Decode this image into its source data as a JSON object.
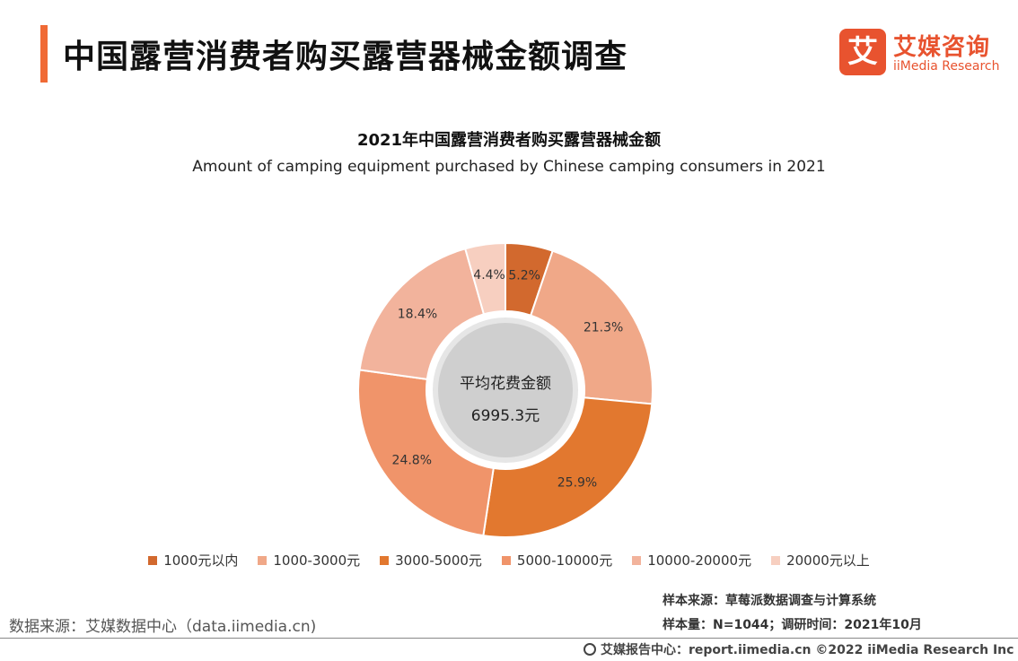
{
  "header": {
    "title": "中国露营消费者购买露营器械金额调查",
    "logo_badge": "艾",
    "logo_cn": "艾媒咨询",
    "logo_en": "iiMedia Research"
  },
  "colors": {
    "accent": "#f06a35",
    "brand": "#e8532f"
  },
  "chart_data": {
    "type": "pie",
    "donut": true,
    "title": "2021年中国露营消费者购买露营器械金额",
    "subtitle": "Amount of camping equipment purchased by Chinese camping consumers in 2021",
    "center_label": "平均花费金额",
    "center_value": "6995.3元",
    "categories": [
      "1000元以内",
      "1000-3000元",
      "3000-5000元",
      "5000-10000元",
      "10000-20000元",
      "20000元以上"
    ],
    "values": [
      5.2,
      21.3,
      25.9,
      24.8,
      18.4,
      4.4
    ],
    "value_labels": [
      "5.2%",
      "21.3%",
      "25.9%",
      "24.8%",
      "18.4%",
      "4.4%"
    ],
    "colors": [
      "#d2692e",
      "#f0a888",
      "#e2782f",
      "#f0946a",
      "#f2b39c",
      "#f7cfc0"
    ],
    "legend_position": "bottom"
  },
  "footer": {
    "data_source": "数据来源：艾媒数据中心（data.iimedia.cn)",
    "sample_source": "样本来源：草莓派数据调查与计算系统",
    "sample_size": "样本量：N=1044；调研时间：2021年10月",
    "report_center": "艾媒报告中心：report.iimedia.cn  ©2022  iiMedia Research  Inc"
  }
}
